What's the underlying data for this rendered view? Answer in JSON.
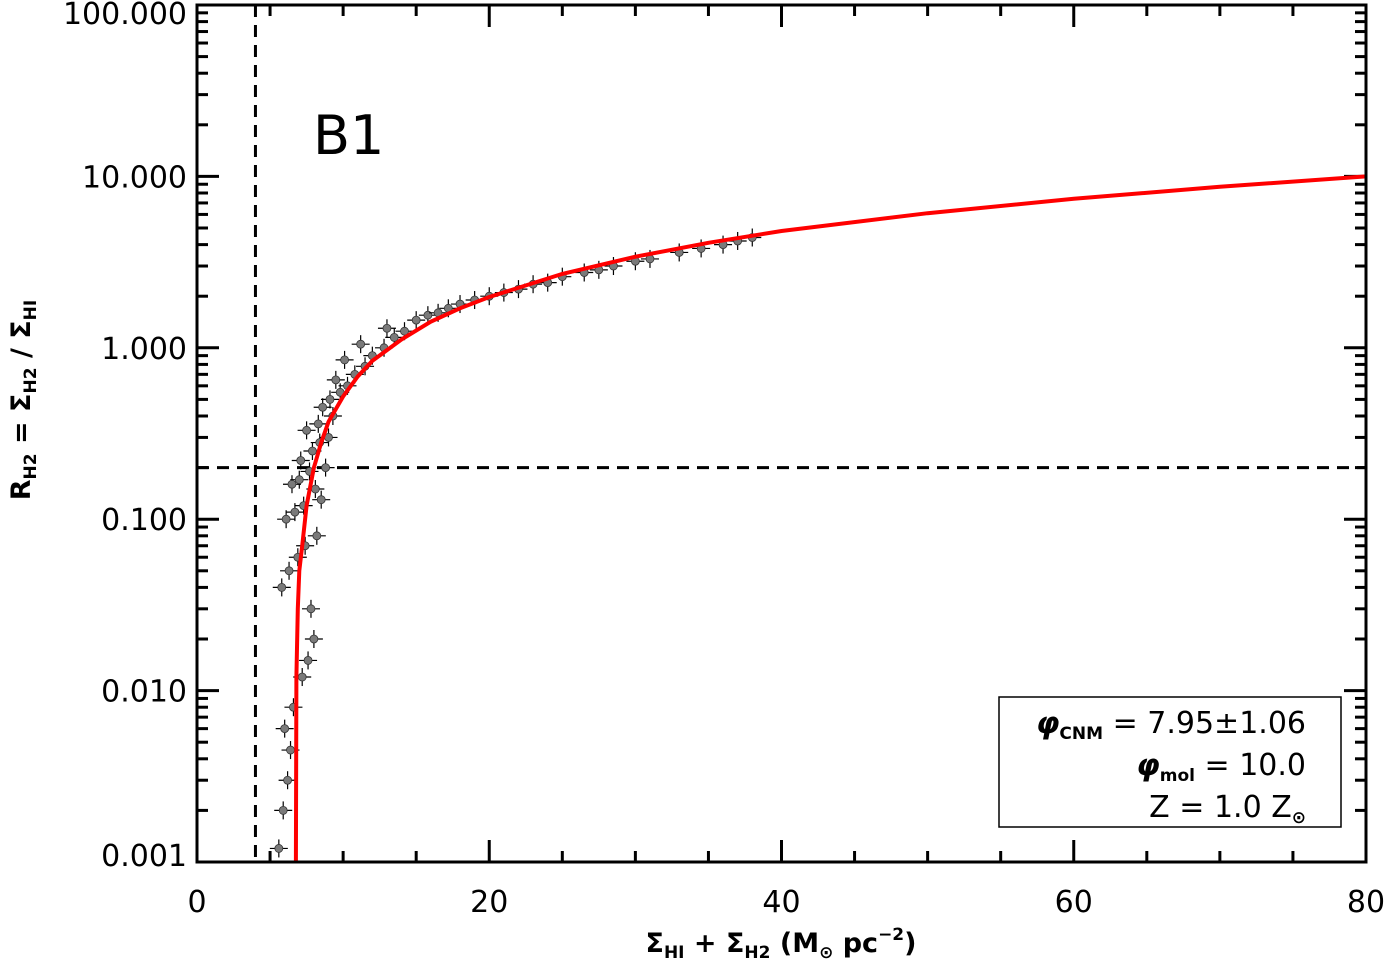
{
  "chart_data": {
    "type": "scatter",
    "panel_label": "B1",
    "xlabel": {
      "parts": [
        {
          "t": "Σ"
        },
        {
          "t": "HI",
          "sub": true
        },
        {
          "t": " + "
        },
        {
          "t": "Σ"
        },
        {
          "t": "H2",
          "sub": true
        },
        {
          "t": " (M"
        },
        {
          "t": "⊙",
          "sub": true
        },
        {
          "t": " pc"
        },
        {
          "t": "−2",
          "sup": true
        },
        {
          "t": ")"
        }
      ]
    },
    "ylabel": {
      "parts": [
        {
          "t": "R"
        },
        {
          "t": "H2",
          "sub": true
        },
        {
          "t": " = "
        },
        {
          "t": "Σ"
        },
        {
          "t": "H2",
          "sub": true
        },
        {
          "t": " / "
        },
        {
          "t": "Σ"
        },
        {
          "t": "HI",
          "sub": true
        }
      ]
    },
    "xlim": [
      0,
      80
    ],
    "ylim": [
      0.001,
      100
    ],
    "yscale": "log",
    "x_ticks": [
      "0",
      "20",
      "40",
      "60",
      "80"
    ],
    "y_ticks": [
      "0.001",
      "0.010",
      "0.100",
      "1.000",
      "10.000",
      "100.000"
    ],
    "x_tick_values": [
      0,
      20,
      40,
      60,
      80
    ],
    "y_tick_values": [
      0.001,
      0.01,
      0.1,
      1,
      10,
      100
    ],
    "reference_lines": {
      "vertical_x": 4.0,
      "horizontal_y": 0.2,
      "style": "dashed"
    },
    "fit_curve": {
      "color": "#ff0000",
      "x": [
        6.77,
        6.8,
        6.9,
        7.0,
        7.2,
        7.5,
        8.0,
        8.5,
        9.0,
        10.0,
        11.0,
        12.0,
        14.0,
        16.0,
        18.0,
        20.0,
        25.0,
        30.0,
        35.0,
        40.0,
        50.0,
        60.0,
        70.0,
        80.0
      ],
      "y": [
        0.001,
        0.012,
        0.03,
        0.05,
        0.07,
        0.12,
        0.2,
        0.28,
        0.37,
        0.52,
        0.68,
        0.84,
        1.12,
        1.42,
        1.7,
        1.98,
        2.7,
        3.4,
        4.1,
        4.8,
        6.1,
        7.4,
        8.7,
        10.0
      ]
    },
    "data_points": {
      "color": "#000000",
      "marker": "circle-with-errorbars",
      "x": [
        5.6,
        5.9,
        6.2,
        6.4,
        6.0,
        6.6,
        7.2,
        7.6,
        8.0,
        7.8,
        5.8,
        6.3,
        6.9,
        7.4,
        8.2,
        6.1,
        6.7,
        7.3,
        8.5,
        8.1,
        6.5,
        7.0,
        7.7,
        8.8,
        7.1,
        7.9,
        8.4,
        9.0,
        7.5,
        8.3,
        9.3,
        8.6,
        9.1,
        9.8,
        10.3,
        9.5,
        10.8,
        11.5,
        10.1,
        12.0,
        12.8,
        11.2,
        13.5,
        14.2,
        13.0,
        15.0,
        15.8,
        16.5,
        17.2,
        18.0,
        19.0,
        20.0,
        21.0,
        22.0,
        23.0,
        24.0,
        25.0,
        26.5,
        27.5,
        28.5,
        30.0,
        31.0,
        33.0,
        34.5,
        36.0,
        37.0,
        38.0
      ],
      "y": [
        0.0012,
        0.002,
        0.003,
        0.0045,
        0.006,
        0.008,
        0.012,
        0.015,
        0.02,
        0.03,
        0.04,
        0.05,
        0.06,
        0.07,
        0.08,
        0.1,
        0.11,
        0.12,
        0.13,
        0.15,
        0.16,
        0.17,
        0.19,
        0.2,
        0.22,
        0.25,
        0.28,
        0.3,
        0.33,
        0.36,
        0.4,
        0.45,
        0.5,
        0.55,
        0.6,
        0.65,
        0.7,
        0.78,
        0.85,
        0.9,
        1.0,
        1.05,
        1.15,
        1.25,
        1.3,
        1.45,
        1.55,
        1.6,
        1.7,
        1.8,
        1.9,
        2.0,
        2.1,
        2.2,
        2.35,
        2.4,
        2.6,
        2.75,
        2.85,
        3.0,
        3.2,
        3.3,
        3.6,
        3.8,
        4.0,
        4.2,
        4.4
      ]
    },
    "legend": {
      "position": "bottom-right",
      "lines": [
        {
          "symbol": "φ",
          "sub": "CNM",
          "value": " = 7.95±1.06"
        },
        {
          "symbol": "φ",
          "sub": "mol",
          "value": " = 10.0"
        },
        {
          "symbol": "Z",
          "sub": "",
          "value": " = 1.0 Z",
          "tail_sub": "⊙"
        }
      ]
    }
  }
}
